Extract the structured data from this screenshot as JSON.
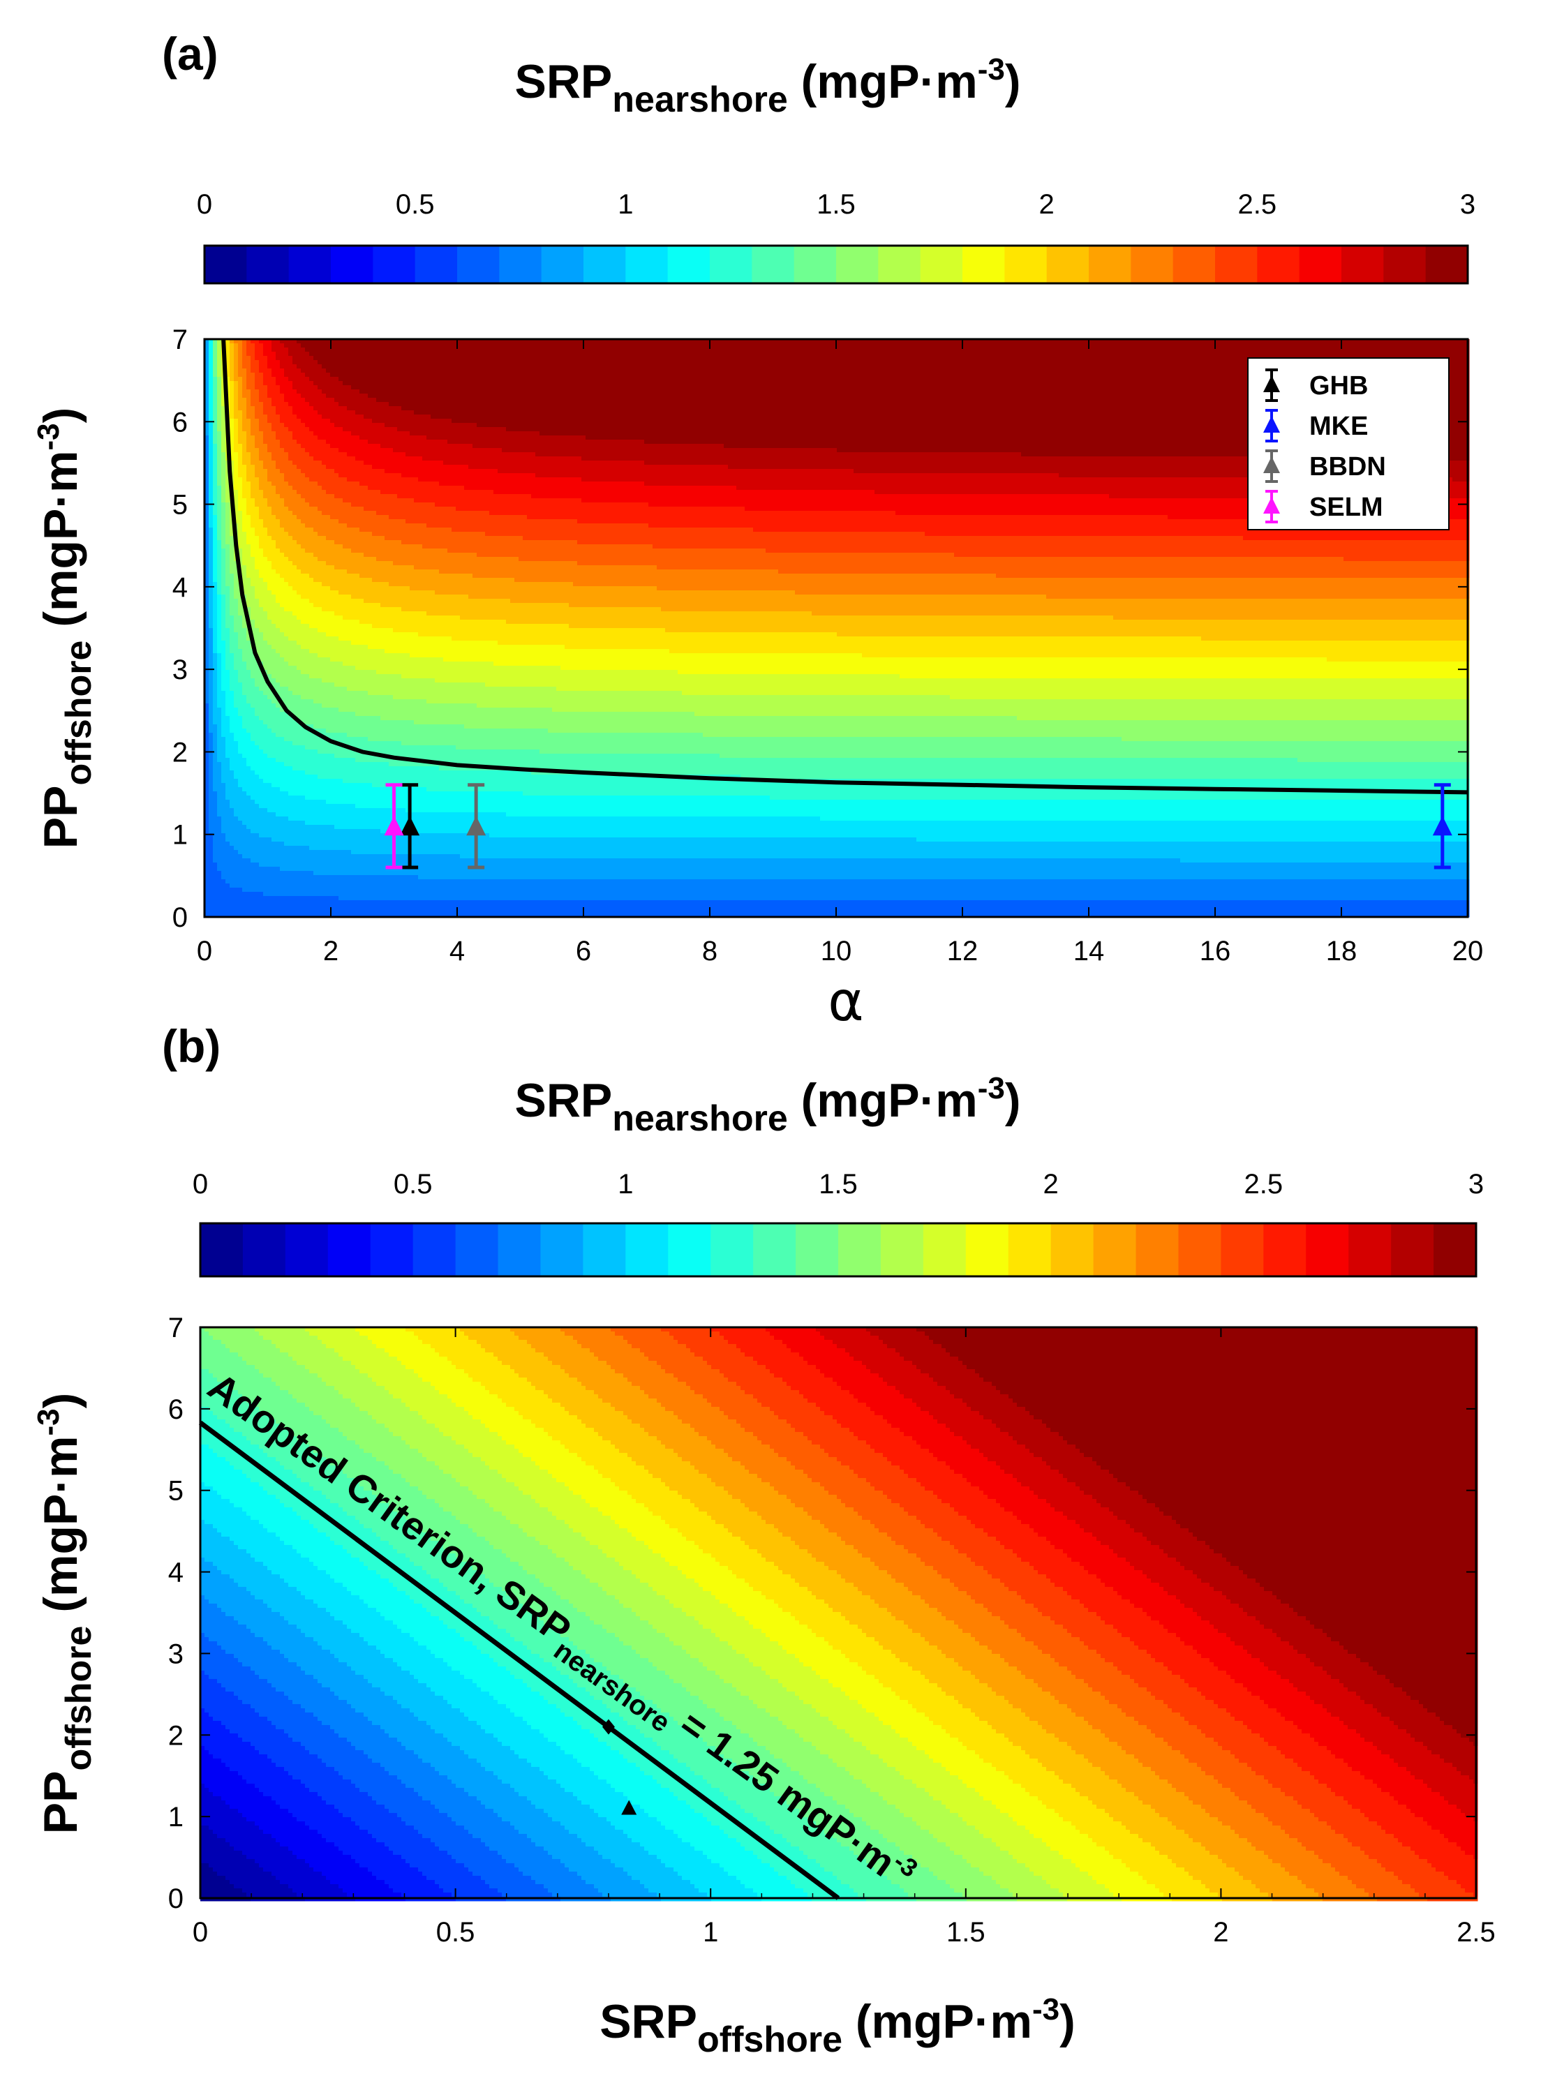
{
  "chart_data": [
    {
      "panel_label": "(a)",
      "type": "heatmap",
      "description_kind": "filled contour",
      "colorbar": {
        "title_main": "SRP",
        "title_sub": "nearshore",
        "title_unit": " (mgP·m",
        "title_exp": "-3",
        "title_close": ")",
        "ticks": [
          "0",
          "0.5",
          "1",
          "1.5",
          "2",
          "2.5",
          "3"
        ],
        "tick_values": [
          0,
          0.5,
          1,
          1.5,
          2,
          2.5,
          3
        ],
        "range": [
          0,
          3
        ],
        "levels": 30
      },
      "xlabel": "α",
      "xlim": [
        0,
        20
      ],
      "xticks": [
        "0",
        "2",
        "4",
        "6",
        "8",
        "10",
        "12",
        "14",
        "16",
        "18",
        "20"
      ],
      "xtick_values": [
        0,
        2,
        4,
        6,
        8,
        10,
        12,
        14,
        16,
        18,
        20
      ],
      "ylabel_main": "PP",
      "ylabel_sub": "offshore",
      "ylabel_unit": " (mgP·m",
      "ylabel_exp": "-3",
      "ylabel_close": ")",
      "ylim": [
        0,
        7
      ],
      "yticks": [
        "0",
        "1",
        "2",
        "3",
        "4",
        "5",
        "6",
        "7"
      ],
      "ytick_values": [
        0,
        1,
        2,
        3,
        4,
        5,
        6,
        7
      ],
      "criterion_curve": {
        "name": "SRP_nearshore = 1.25 contour",
        "x": [
          0.3,
          0.4,
          0.5,
          0.6,
          0.8,
          1.0,
          1.3,
          1.6,
          2.0,
          2.5,
          3.0,
          4.0,
          5.0,
          6.0,
          8.0,
          10,
          12,
          14,
          16,
          18,
          20
        ],
        "y": [
          7.0,
          5.4,
          4.5,
          3.9,
          3.2,
          2.85,
          2.5,
          2.3,
          2.13,
          2.0,
          1.93,
          1.84,
          1.79,
          1.75,
          1.68,
          1.63,
          1.6,
          1.57,
          1.55,
          1.53,
          1.51
        ]
      },
      "series": [
        {
          "name": "GHB",
          "color": "#000000",
          "x": 3.25,
          "y": 1.08,
          "err_low": 0.6,
          "err_high": 1.6
        },
        {
          "name": "MKE",
          "color": "#0a14ff",
          "x": 19.6,
          "y": 1.08,
          "err_low": 0.6,
          "err_high": 1.6
        },
        {
          "name": "BBDN",
          "color": "#666666",
          "x": 4.3,
          "y": 1.08,
          "err_low": 0.6,
          "err_high": 1.6
        },
        {
          "name": "SELM",
          "color": "#ff14ff",
          "x": 3.0,
          "y": 1.08,
          "err_low": 0.6,
          "err_high": 1.6
        }
      ],
      "legend": "top-right"
    },
    {
      "panel_label": "(b)",
      "type": "heatmap",
      "description_kind": "filled contour",
      "colorbar": {
        "title_main": "SRP",
        "title_sub": "nearshore",
        "title_unit": " (mgP·m",
        "title_exp": "-3",
        "title_close": ")",
        "ticks": [
          "0",
          "0.5",
          "1",
          "1.5",
          "2",
          "2.5",
          "3"
        ],
        "tick_values": [
          0,
          0.5,
          1,
          1.5,
          2,
          2.5,
          3
        ],
        "range": [
          0,
          3
        ],
        "levels": 30
      },
      "xlabel_main": "SRP",
      "xlabel_sub": "offshore",
      "xlabel_unit": " (mgP·m",
      "xlabel_exp": "-3",
      "xlabel_close": ")",
      "xlim": [
        0,
        2.5
      ],
      "xticks": [
        "0",
        "0.5",
        "1",
        "1.5",
        "2",
        "2.5"
      ],
      "xtick_values": [
        0,
        0.5,
        1,
        1.5,
        2,
        2.5
      ],
      "ylabel_main": "PP",
      "ylabel_sub": "offshore",
      "ylabel_unit": " (mgP·m",
      "ylabel_exp": "-3",
      "ylabel_close": ")",
      "ylim": [
        0,
        7
      ],
      "yticks": [
        "0",
        "1",
        "2",
        "3",
        "4",
        "5",
        "6",
        "7"
      ],
      "ytick_values": [
        0,
        1,
        2,
        3,
        4,
        5,
        6,
        7
      ],
      "criterion_line": {
        "x": [
          0,
          1.25
        ],
        "y": [
          5.83,
          0
        ]
      },
      "annotation": {
        "text_main": "Adopted Criterion, SRP",
        "text_sub": "nearshore",
        "text_rest": " = 1.25 mgP·m",
        "text_exp": "-3"
      },
      "markers": [
        {
          "name": "diamond",
          "x": 0.8,
          "y": 2.1
        },
        {
          "name": "triangle",
          "x": 0.84,
          "y": 1.1
        }
      ]
    }
  ]
}
